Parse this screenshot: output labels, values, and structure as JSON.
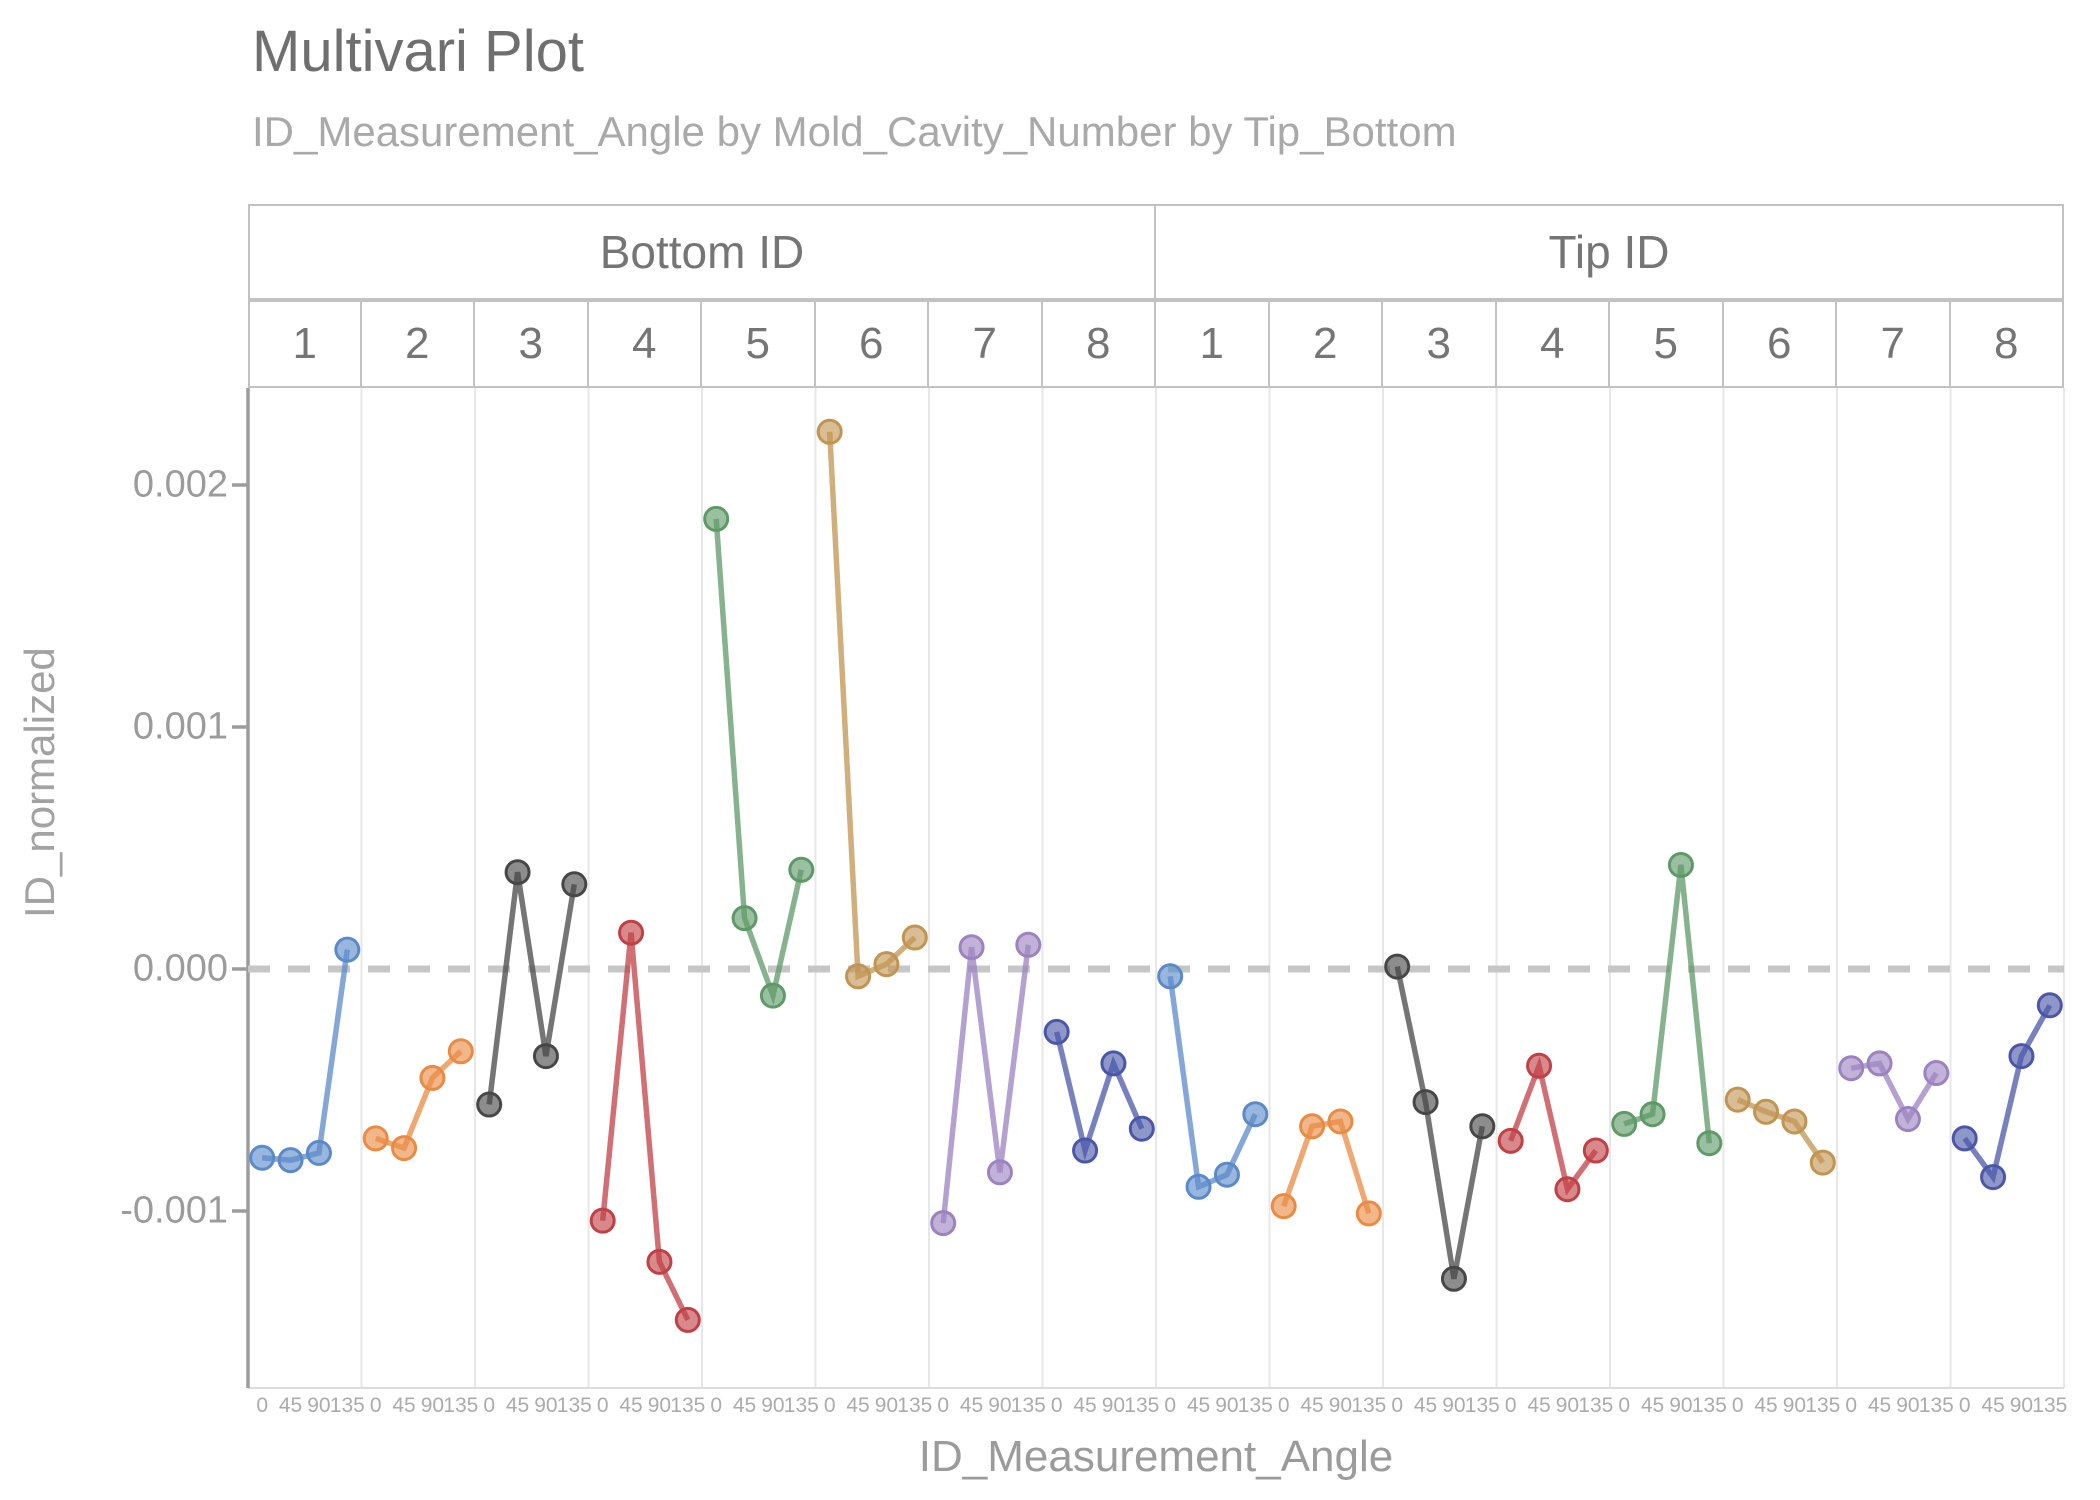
{
  "header": {
    "title": "Multivari Plot",
    "subtitle": "ID_Measurement_Angle by Mold_Cavity_Number by Tip_Bottom"
  },
  "facets": {
    "groups": [
      {
        "label": "Bottom ID"
      },
      {
        "label": "Tip ID"
      }
    ],
    "cavities": [
      "1",
      "2",
      "3",
      "4",
      "5",
      "6",
      "7",
      "8"
    ]
  },
  "y_axis": {
    "label": "ID_normalized",
    "ticks": [
      {
        "label": "0.002",
        "value": 0.002
      },
      {
        "label": "0.001",
        "value": 0.001
      },
      {
        "label": "0.000",
        "value": 0.0
      },
      {
        "label": "-0.001",
        "value": -0.001
      }
    ]
  },
  "x_axis": {
    "label": "ID_Measurement_Angle",
    "tick_labels": [
      "0",
      "45",
      "90",
      "135"
    ]
  },
  "chart_data": {
    "type": "line",
    "x": [
      0,
      45,
      90,
      135
    ],
    "xlabel": "ID_Measurement_Angle",
    "ylabel": "ID_normalized",
    "ylim": [
      -0.0016,
      0.0024
    ],
    "zero_reference_line": 0.0,
    "grid": "vertical-panel-separators-only",
    "facet_row_top": [
      "Bottom ID",
      "Tip ID"
    ],
    "facet_row_bottom": "Mold_Cavity_Number 1-8 within each Tip_Bottom group",
    "series": [
      {
        "group": "Bottom ID",
        "cavity": "1",
        "color": "#5b8ac9",
        "values": [
          -0.00078,
          -0.00079,
          -0.00076,
          8e-05
        ]
      },
      {
        "group": "Bottom ID",
        "cavity": "2",
        "color": "#e98b43",
        "values": [
          -0.0007,
          -0.00074,
          -0.00045,
          -0.00034
        ]
      },
      {
        "group": "Bottom ID",
        "cavity": "3",
        "color": "#474747",
        "values": [
          -0.00056,
          0.0004,
          -0.00036,
          0.00035
        ]
      },
      {
        "group": "Bottom ID",
        "cavity": "4",
        "color": "#c04046",
        "values": [
          -0.00104,
          0.00015,
          -0.00121,
          -0.00145
        ]
      },
      {
        "group": "Bottom ID",
        "cavity": "5",
        "color": "#5e9a67",
        "values": [
          0.00186,
          0.00021,
          -0.00011,
          0.00041
        ]
      },
      {
        "group": "Bottom ID",
        "cavity": "6",
        "color": "#c29452",
        "values": [
          0.00222,
          -3e-05,
          2e-05,
          0.00013
        ]
      },
      {
        "group": "Bottom ID",
        "cavity": "7",
        "color": "#9c82c0",
        "values": [
          -0.00105,
          9e-05,
          -0.00084,
          0.0001
        ]
      },
      {
        "group": "Bottom ID",
        "cavity": "8",
        "color": "#4a57a8",
        "values": [
          -0.00026,
          -0.00075,
          -0.00039,
          -0.00066
        ]
      },
      {
        "group": "Tip ID",
        "cavity": "1",
        "color": "#5b8ac9",
        "values": [
          -3e-05,
          -0.0009,
          -0.00085,
          -0.0006
        ]
      },
      {
        "group": "Tip ID",
        "cavity": "2",
        "color": "#e98b43",
        "values": [
          -0.00098,
          -0.00065,
          -0.00063,
          -0.00101
        ]
      },
      {
        "group": "Tip ID",
        "cavity": "3",
        "color": "#474747",
        "values": [
          1e-05,
          -0.00055,
          -0.00128,
          -0.00065
        ]
      },
      {
        "group": "Tip ID",
        "cavity": "4",
        "color": "#c04046",
        "values": [
          -0.00071,
          -0.0004,
          -0.00091,
          -0.00075
        ]
      },
      {
        "group": "Tip ID",
        "cavity": "5",
        "color": "#5e9a67",
        "values": [
          -0.00064,
          -0.0006,
          0.00043,
          -0.00072
        ]
      },
      {
        "group": "Tip ID",
        "cavity": "6",
        "color": "#c29452",
        "values": [
          -0.00054,
          -0.00059,
          -0.00063,
          -0.0008
        ]
      },
      {
        "group": "Tip ID",
        "cavity": "7",
        "color": "#9c82c0",
        "values": [
          -0.00041,
          -0.00039,
          -0.00062,
          -0.00043
        ]
      },
      {
        "group": "Tip ID",
        "cavity": "8",
        "color": "#4a57a8",
        "values": [
          -0.0007,
          -0.00086,
          -0.00036,
          -0.00015
        ]
      }
    ]
  },
  "style_colors": {
    "zero_line": "#c6c6c6",
    "axis_line": "#9c9c9c",
    "panel_gridline": "#e7e7e7",
    "strip_border": "#c2c2c2"
  }
}
